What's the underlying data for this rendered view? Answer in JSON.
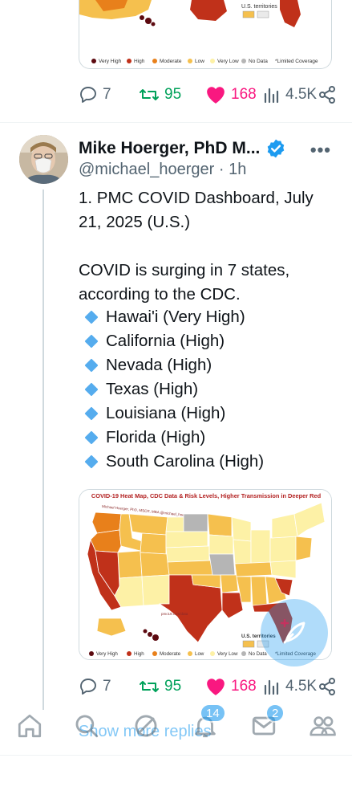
{
  "previous_post": {
    "map_legend": {
      "very_high": "Very High",
      "high": "High",
      "moderate": "Moderate",
      "low": "Low",
      "very_low": "Very Low",
      "no_data": "No Data",
      "limited": "*Limited Coverage",
      "territories": "U.S. territories"
    },
    "stats": {
      "replies": "7",
      "reposts": "95",
      "likes": "168",
      "views": "4.5K"
    }
  },
  "post": {
    "author_name": "Mike Hoerger, PhD M...",
    "handle": "@michael_hoerger",
    "separator": "·",
    "time": "1h",
    "text_line1": "1. PMC COVID Dashboard, July 21, 2025 (U.S.)",
    "text_line2": "COVID is surging in 7 states, according to the CDC.",
    "states": [
      "Hawai'i (Very High)",
      "California (High)",
      "Nevada (High)",
      "Texas (High)",
      "Louisiana (High)",
      "Florida (High)",
      "South Carolina (High)"
    ],
    "map": {
      "title": "COVID-19 Heat Map, CDC Data & Risk Levels, Higher Transmission in Deeper Red",
      "credit": "Michael Hoerger, PhD, MSCR, MBA @michael_hoerger",
      "credit2": "pmc19.com/data",
      "territories": "U.S. territories",
      "legend": {
        "very_high": "Very High",
        "high": "High",
        "moderate": "Moderate",
        "low": "Low",
        "very_low": "Very Low",
        "no_data": "No Data",
        "limited": "*Limited Coverage"
      }
    },
    "stats": {
      "replies": "7",
      "reposts": "95",
      "likes": "168",
      "views": "4.5K"
    }
  },
  "show_more": "Show more replies",
  "nav": {
    "notifications_badge": "14",
    "messages_badge": "2"
  },
  "colors": {
    "very_high": "#5c0a10",
    "high": "#c0311a",
    "moderate": "#e8801b",
    "low": "#f5c04e",
    "very_low": "#fdf1a6",
    "no_data": "#b5b5b5",
    "accent": "#1d9bf0",
    "like": "#f91880",
    "repost": "#00a15a"
  }
}
